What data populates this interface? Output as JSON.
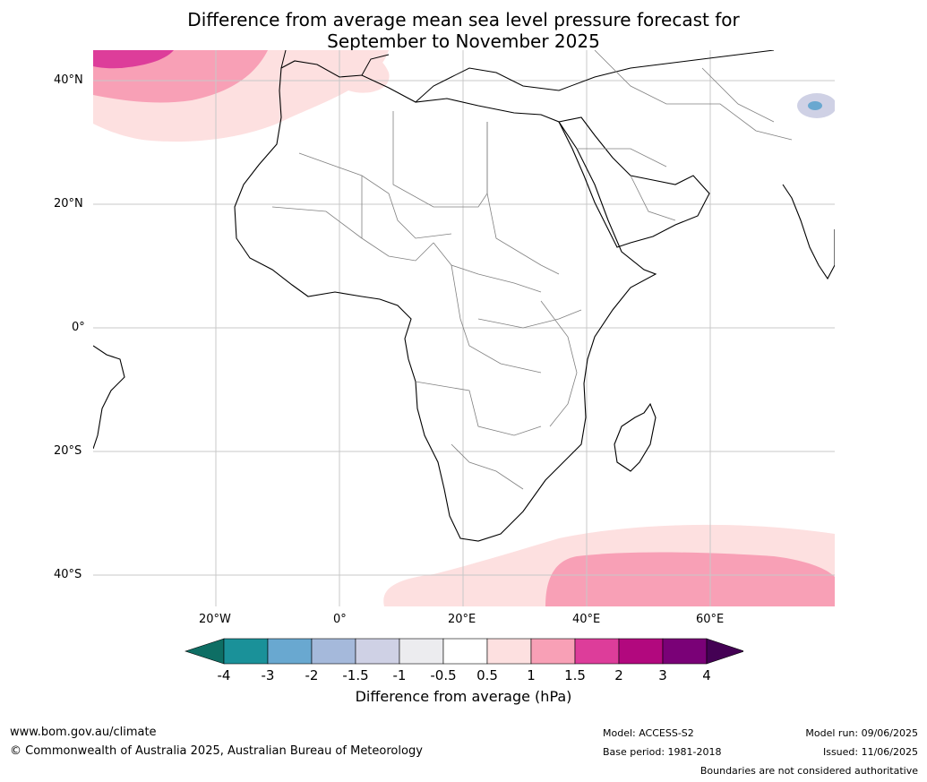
{
  "title": {
    "line1": "Difference from average mean sea level pressure forecast for",
    "line2": "September to November 2025"
  },
  "lat_labels": [
    "40°N",
    "20°N",
    "0°",
    "20°S",
    "40°S"
  ],
  "lon_labels": [
    "20°W",
    "0°",
    "20°E",
    "40°E",
    "60°E"
  ],
  "colorbar": {
    "label": "Difference from average (hPa)",
    "ticks": [
      "-4",
      "-3",
      "-2",
      "-1.5",
      "-1",
      "-0.5",
      "0.5",
      "1",
      "1.5",
      "2",
      "3",
      "4"
    ],
    "colors": [
      "#0e6e64",
      "#1a9199",
      "#69a8d0",
      "#a5b9db",
      "#cfd1e5",
      "#ececef",
      "#ffffff",
      "#fde0e0",
      "#f8a0b6",
      "#dd3d9a",
      "#b2087e",
      "#7a0177",
      "#440154"
    ]
  },
  "footer": {
    "url": "www.bom.gov.au/climate",
    "copyright": "© Commonwealth of Australia 2025, Australian Bureau of Meteorology",
    "model": "Model: ACCESS-S2",
    "base_period": "Base period: 1981-2018",
    "model_run": "Model run: 09/06/2025",
    "issued": "Issued: 11/06/2025",
    "disclaimer": "Boundaries are not considered authoritative"
  }
}
